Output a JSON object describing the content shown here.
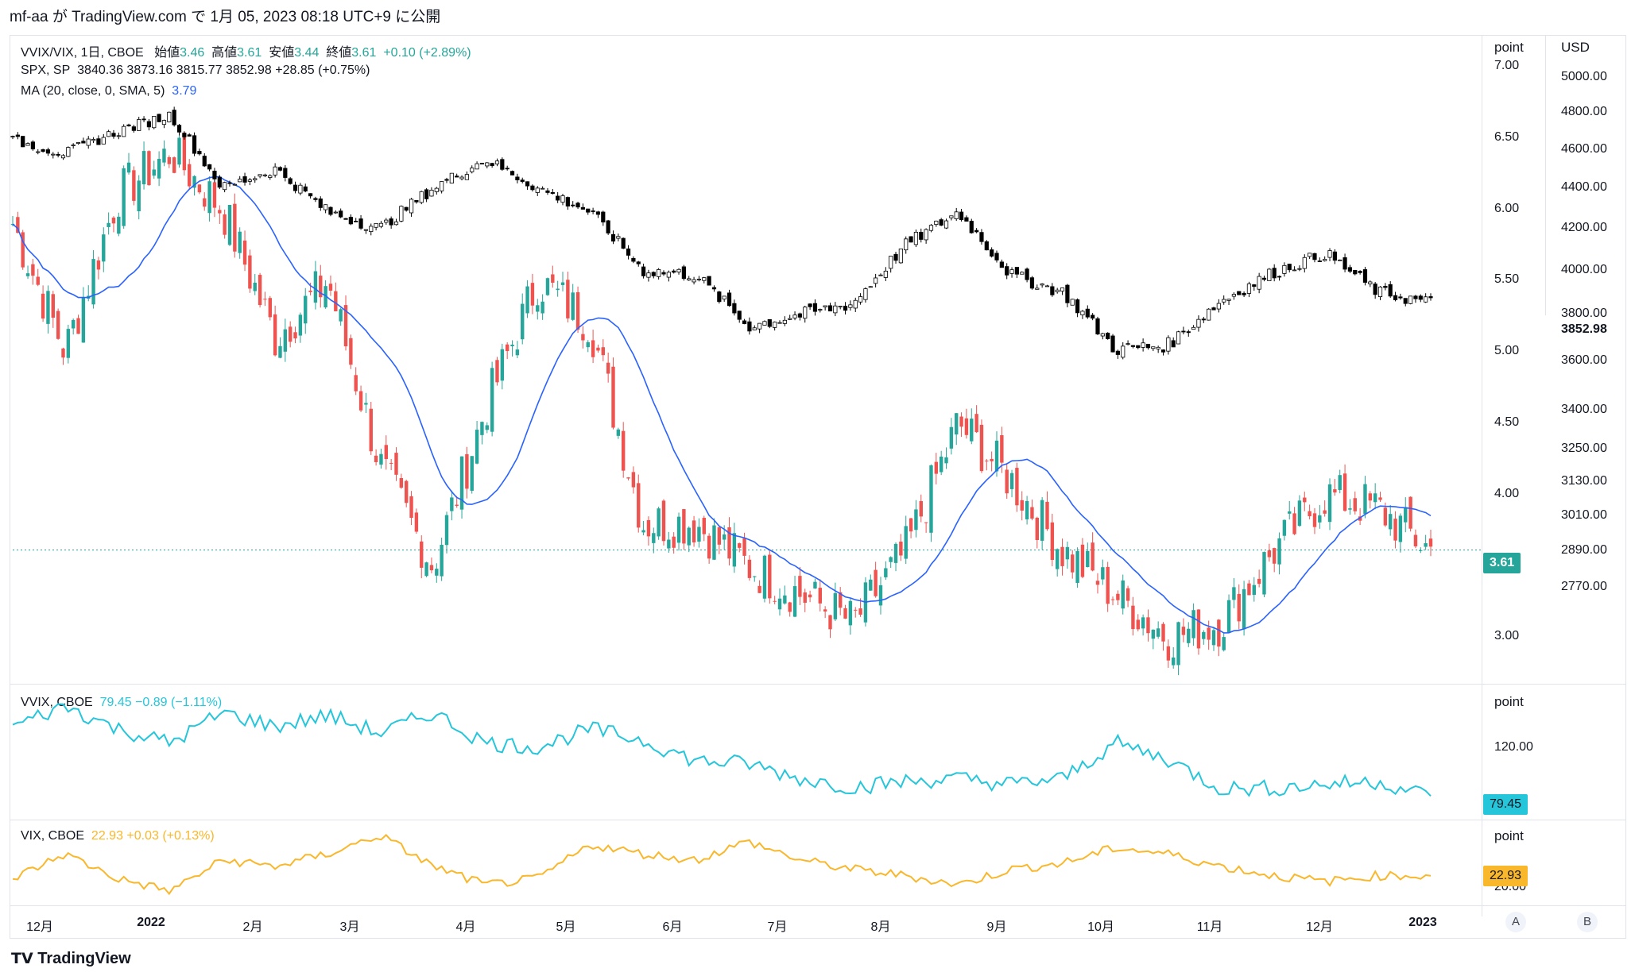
{
  "header": {
    "publisher_line": "mf-aa が TradingView.com で 1月 05, 2023 08:18 UTC+9 に公開"
  },
  "legend_main": {
    "symbol": "VVIX/VIX, 1日, CBOE",
    "open_label": "始値",
    "open": "3.46",
    "high_label": "高値",
    "high": "3.61",
    "low_label": "安値",
    "low": "3.44",
    "close_label": "終値",
    "close": "3.61",
    "change": "+0.10 (+2.89%)"
  },
  "legend_spx": {
    "symbol": "SPX, SP",
    "values": "3840.36  3873.16  3815.77  3852.98  +28.85 (+0.75%)"
  },
  "legend_ma": {
    "label": "MA (20, close, 0, SMA, 5)",
    "value": "3.79"
  },
  "legend_vvix": {
    "symbol": "VVIX, CBOE",
    "values": "79.45  −0.89 (−1.11%)"
  },
  "legend_vix": {
    "symbol": "VIX, CBOE",
    "values": "22.93  +0.03 (+0.13%)"
  },
  "axes": {
    "point_unit": "point",
    "usd_unit": "USD",
    "ratio_ticks": [
      "7.00",
      "6.50",
      "6.00",
      "5.50",
      "5.00",
      "4.50",
      "4.00",
      "3.50",
      "3.00"
    ],
    "usd_ticks": [
      "5000.00",
      "4800.00",
      "4600.00",
      "4400.00",
      "4200.00",
      "4000.00",
      "3800.00",
      "3600.00",
      "3400.00",
      "3250.00",
      "3130.00",
      "3010.00",
      "2890.00",
      "2770.00"
    ],
    "vvix_ticks": [
      "120.00"
    ],
    "vix_ticks": [
      "20.00"
    ],
    "x_ticks": [
      "12月",
      "2022",
      "2月",
      "3月",
      "4月",
      "5月",
      "6月",
      "7月",
      "8月",
      "9月",
      "10月",
      "11月",
      "12月",
      "2023"
    ]
  },
  "price_tags": {
    "ratio_last": "3.61",
    "spx_last": "3852.98",
    "vvix_last": "79.45",
    "vix_last": "22.93"
  },
  "buttons": {
    "a": "A",
    "b": "B"
  },
  "footer": {
    "logo_text": "TradingView"
  },
  "colors": {
    "up": "#26a69a",
    "down": "#ef5350",
    "ma": "#2962ff",
    "spx": "#000000",
    "vvix": "#26c6da",
    "vix": "#f9b72b",
    "grid": "#e0e3eb"
  },
  "chart_data": [
    {
      "type": "candlestick",
      "title": "VVIX/VIX, 1日, CBOE",
      "ylim": [
        2.8,
        7.1
      ],
      "x": [
        "2021-11-22",
        "2021-12-01",
        "2021-12-15",
        "2022-01-03",
        "2022-01-20",
        "2022-02-01",
        "2022-02-24",
        "2022-03-07",
        "2022-03-15",
        "2022-04-01",
        "2022-04-10",
        "2022-04-25",
        "2022-05-09",
        "2022-05-25",
        "2022-06-13",
        "2022-06-30",
        "2022-07-15",
        "2022-08-01",
        "2022-08-15",
        "2022-09-01",
        "2022-09-15",
        "2022-10-01",
        "2022-10-20",
        "2022-11-01",
        "2022-11-15",
        "2022-12-01",
        "2022-12-15",
        "2023-01-04"
      ],
      "close": [
        5.9,
        5.0,
        6.1,
        6.4,
        6.0,
        5.1,
        5.5,
        4.2,
        3.5,
        4.6,
        5.5,
        5.2,
        3.8,
        3.8,
        3.5,
        3.3,
        3.1,
        3.6,
        4.5,
        4.1,
        3.6,
        3.3,
        3.0,
        3.1,
        3.6,
        4.0,
        3.9,
        3.61
      ],
      "ma": {
        "label": "MA (20, close, 0, SMA, 5)",
        "last": 3.79
      }
    },
    {
      "type": "candlestick",
      "title": "SPX, SP",
      "ylim": [
        2700,
        5100
      ],
      "x": [
        "2021-11-22",
        "2021-12-01",
        "2021-12-15",
        "2022-01-03",
        "2022-01-20",
        "2022-02-01",
        "2022-02-24",
        "2022-03-07",
        "2022-03-15",
        "2022-04-01",
        "2022-04-10",
        "2022-04-25",
        "2022-05-09",
        "2022-05-25",
        "2022-06-13",
        "2022-06-30",
        "2022-07-15",
        "2022-08-01",
        "2022-08-15",
        "2022-09-01",
        "2022-09-15",
        "2022-10-01",
        "2022-10-20",
        "2022-11-01",
        "2022-11-15",
        "2022-12-01",
        "2022-12-15",
        "2023-01-04"
      ],
      "close": [
        4650,
        4580,
        4700,
        4790,
        4400,
        4500,
        4280,
        4200,
        4400,
        4550,
        4400,
        4280,
        4000,
        3980,
        3750,
        3800,
        3850,
        4120,
        4280,
        3980,
        3900,
        3650,
        3670,
        3860,
        3990,
        4080,
        3900,
        3852.98
      ]
    },
    {
      "type": "line",
      "title": "VVIX, CBOE",
      "ylim": [
        70,
        150
      ],
      "x": [
        "2021-11-22",
        "2021-12-01",
        "2021-12-15",
        "2022-01-03",
        "2022-01-20",
        "2022-02-01",
        "2022-02-24",
        "2022-03-07",
        "2022-03-15",
        "2022-04-01",
        "2022-04-10",
        "2022-04-25",
        "2022-05-09",
        "2022-05-25",
        "2022-06-13",
        "2022-06-30",
        "2022-07-15",
        "2022-08-01",
        "2022-08-15",
        "2022-09-01",
        "2022-09-15",
        "2022-10-01",
        "2022-10-20",
        "2022-11-01",
        "2022-11-15",
        "2022-12-01",
        "2022-12-15",
        "2023-01-04"
      ],
      "values": [
        130,
        145,
        128,
        118,
        140,
        130,
        138,
        125,
        140,
        118,
        115,
        128,
        120,
        105,
        103,
        92,
        86,
        90,
        92,
        88,
        92,
        118,
        106,
        85,
        85,
        88,
        90,
        79.45
      ]
    },
    {
      "type": "line",
      "title": "VIX, CBOE",
      "ylim": [
        18,
        38
      ],
      "x": [
        "2021-11-22",
        "2021-12-01",
        "2021-12-15",
        "2022-01-03",
        "2022-01-20",
        "2022-02-01",
        "2022-02-24",
        "2022-03-07",
        "2022-03-15",
        "2022-04-01",
        "2022-04-10",
        "2022-04-25",
        "2022-05-09",
        "2022-05-25",
        "2022-06-13",
        "2022-06-30",
        "2022-07-15",
        "2022-08-01",
        "2022-08-15",
        "2022-09-01",
        "2022-09-15",
        "2022-10-01",
        "2022-10-20",
        "2022-11-01",
        "2022-11-15",
        "2022-12-01",
        "2022-12-15",
        "2023-01-04"
      ],
      "values": [
        22,
        30,
        22,
        18,
        28,
        26,
        30,
        36,
        26,
        20,
        22,
        33,
        30,
        28,
        34,
        28,
        25,
        23,
        20,
        25,
        27,
        32,
        30,
        26,
        23,
        21,
        23,
        22.93
      ]
    }
  ]
}
